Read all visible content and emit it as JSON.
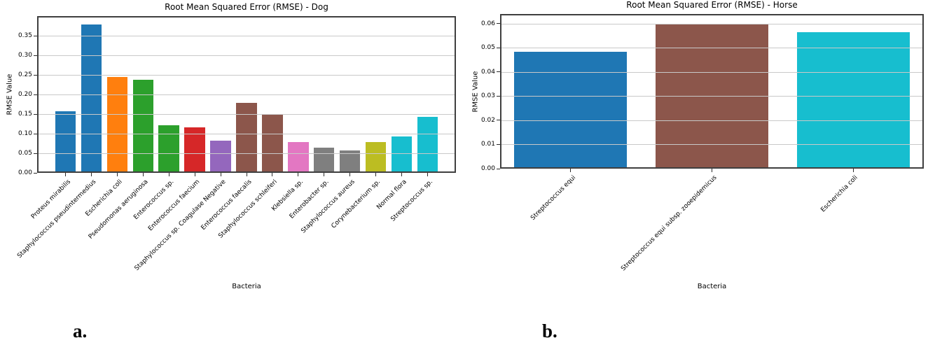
{
  "figure": {
    "background": "#ffffff"
  },
  "captions": {
    "a": "a.",
    "b": "b."
  },
  "styles": {
    "grid_color": "#c9c9c9",
    "spine_color": "#3f3f3f",
    "tick_color": "#2b2b2b",
    "text_color": "#000000"
  },
  "chart_data": [
    {
      "id": "dog",
      "type": "bar",
      "title": "Root Mean Squared Error (RMSE) - Dog",
      "xlabel": "Bacteria",
      "ylabel": "RMSE Value",
      "grid": true,
      "legend": "none",
      "xlim": [
        -1.1,
        15.1
      ],
      "ylim": [
        0,
        0.4
      ],
      "bar_width": 0.8,
      "ytick_values": [
        0.0,
        0.05,
        0.1,
        0.15,
        0.2,
        0.25,
        0.3,
        0.35
      ],
      "ytick_labels": [
        "0.00",
        "0.05",
        "0.10",
        "0.15",
        "0.20",
        "0.25",
        "0.30",
        "0.35"
      ],
      "categories": [
        "Proteus mirabilis",
        "Staphylococcus pseudintermedius",
        "Escherichia coli",
        "Pseudomonas aeruginosa",
        "Enterococcus sp.",
        "Enterococcus faecium",
        "Staphylococcus sp. Coagulase Negative",
        "Enterococcus faecalis",
        "Staphylococcus schleiferi",
        "Klebsiella sp.",
        "Enterobacter sp.",
        "Staphylococcus aureus",
        "Corynebacterium sp.",
        "Normal flora",
        "Streptococcus sp."
      ],
      "values": [
        0.158,
        0.378,
        0.245,
        0.238,
        0.122,
        0.116,
        0.082,
        0.179,
        0.149,
        0.079,
        0.065,
        0.058,
        0.078,
        0.092,
        0.142
      ],
      "colors": [
        "#1f77b4",
        "#1f77b4",
        "#ff7f0e",
        "#2ca02c",
        "#2ca02c",
        "#d62728",
        "#9467bd",
        "#8c564b",
        "#8c564b",
        "#e377c2",
        "#7f7f7f",
        "#7f7f7f",
        "#bcbd22",
        "#17becf",
        "#17becf"
      ]
    },
    {
      "id": "horse",
      "type": "bar",
      "title": "Root Mean Squared Error (RMSE) - Horse",
      "xlabel": "Bacteria",
      "ylabel": "RMSE Value",
      "grid": true,
      "legend": "none",
      "xlim": [
        -0.5,
        2.5
      ],
      "ylim": [
        0,
        0.064
      ],
      "bar_width": 0.8,
      "ytick_values": [
        0.0,
        0.01,
        0.02,
        0.03,
        0.04,
        0.05,
        0.06
      ],
      "ytick_labels": [
        "0.00",
        "0.01",
        "0.02",
        "0.03",
        "0.04",
        "0.05",
        "0.06"
      ],
      "categories": [
        "Streptococcus equi",
        "Streptococcus equi subsp. zooepidemicus",
        "Escherichia coli"
      ],
      "values": [
        0.0485,
        0.06,
        0.0565
      ],
      "colors": [
        "#1f77b4",
        "#8c564b",
        "#17becf"
      ]
    }
  ]
}
